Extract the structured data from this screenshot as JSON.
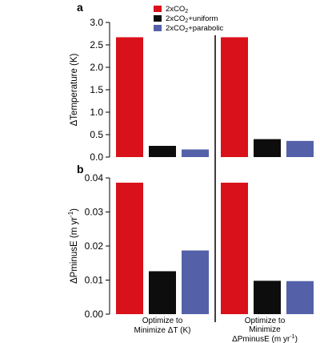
{
  "chart_data": [
    {
      "panel": "a",
      "type": "bar",
      "ylabel": "ΔTemperature (K)",
      "ylim": [
        0,
        3.0
      ],
      "yticks": [
        "0.0",
        "0.5",
        "1.0",
        "1.5",
        "2.0",
        "2.5",
        "3.0"
      ],
      "categories": [
        "Optimize to Minimize ΔT (K)",
        "Optimize to Minimize ΔPminusE (m yr⁻¹)"
      ],
      "series": [
        {
          "name": "2xCO2",
          "color": "#d9111a",
          "values": [
            2.67,
            2.67
          ]
        },
        {
          "name": "2xCO2+uniform",
          "color": "#0d0d0d",
          "values": [
            0.25,
            0.4
          ]
        },
        {
          "name": "2xCO2+parabolic",
          "color": "#5461a9",
          "values": [
            0.17,
            0.36
          ]
        }
      ],
      "legend": "top-left"
    },
    {
      "panel": "b",
      "type": "bar",
      "ylabel": "ΔPminusE (m yr⁻¹)",
      "ylim": [
        0,
        0.04
      ],
      "yticks": [
        "0.00",
        "0.01",
        "0.02",
        "0.03",
        "0.04"
      ],
      "categories": [
        "Optimize to Minimize ΔT (K)",
        "Optimize to Minimize ΔPminusE (m yr⁻¹)"
      ],
      "series": [
        {
          "name": "2xCO2",
          "color": "#d9111a",
          "values": [
            0.0386,
            0.0386
          ]
        },
        {
          "name": "2xCO2+uniform",
          "color": "#0d0d0d",
          "values": [
            0.0126,
            0.0098
          ]
        },
        {
          "name": "2xCO2+parabolic",
          "color": "#5461a9",
          "values": [
            0.0187,
            0.0097
          ]
        }
      ]
    }
  ],
  "panel_a_label": "a",
  "panel_b_label": "b",
  "legend": {
    "items": [
      {
        "base": "2xCO",
        "sub": "2",
        "suffix": "",
        "color": "#d9111a"
      },
      {
        "base": "2xCO",
        "sub": "2",
        "suffix": "+uniform",
        "color": "#0d0d0d"
      },
      {
        "base": "2xCO",
        "sub": "2",
        "suffix": "+parabolic",
        "color": "#5461a9"
      }
    ]
  },
  "xlabels": {
    "left": {
      "line1": "Optimize to",
      "line2": "Minimize ΔT (K)"
    },
    "right": {
      "line1": "Optimize to",
      "line2": "Minimize",
      "line3": "ΔPminusE (m yr",
      "line3_sup": "-1",
      "line3_end": ")"
    }
  },
  "ylabel_a": "ΔTemperature (K)",
  "ylabel_b": {
    "main": "ΔPminusE (m yr",
    "sup": "-1",
    "end": ")"
  }
}
